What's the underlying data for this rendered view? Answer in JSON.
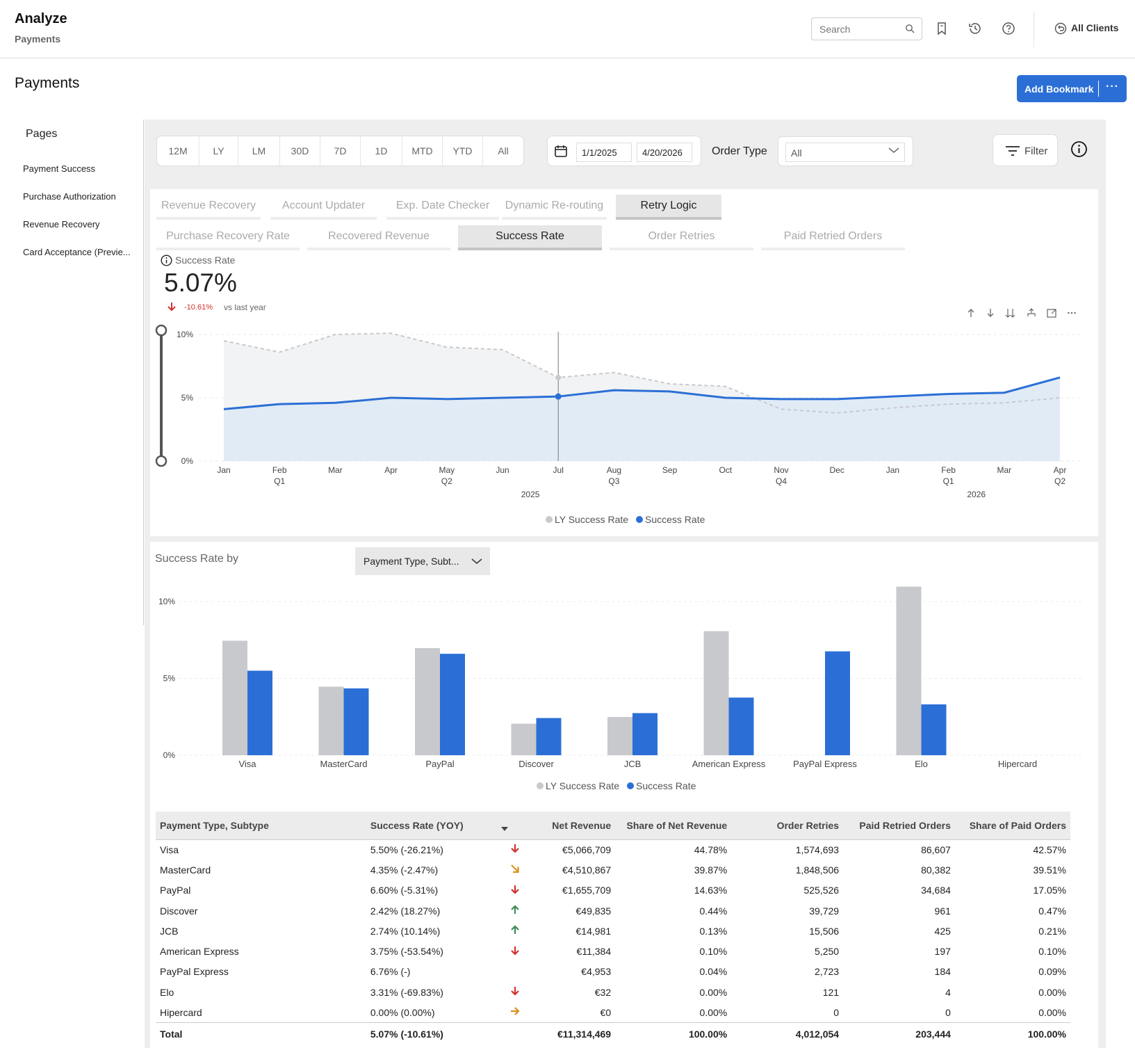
{
  "header": {
    "app_title": "Analyze",
    "app_subtitle": "Payments",
    "search_placeholder": "Search",
    "clients_label": "All Clients"
  },
  "page": {
    "title": "Payments",
    "bookmark_label": "Add Bookmark",
    "bookmark_more": "···"
  },
  "sidebar": {
    "heading": "Pages",
    "items": [
      "Payment Success",
      "Purchase Authorization",
      "Revenue Recovery",
      "Card Acceptance (Previe..."
    ]
  },
  "filters": {
    "periods": [
      "12M",
      "LY",
      "LM",
      "30D",
      "7D",
      "1D",
      "MTD",
      "YTD",
      "All"
    ],
    "date_from": "1/1/2025",
    "date_to": "4/20/2026",
    "order_type_label": "Order Type",
    "order_type_value": "All",
    "filter_label": "Filter"
  },
  "tabs_primary": {
    "items": [
      "Revenue Recovery",
      "Account Updater",
      "Exp. Date Checker",
      "Dynamic Re-routing",
      "Retry Logic"
    ],
    "active": "Retry Logic"
  },
  "tabs_secondary": {
    "items": [
      "Purchase Recovery Rate",
      "Recovered Revenue",
      "Success Rate",
      "Order Retries",
      "Paid Retried Orders"
    ],
    "active": "Success Rate"
  },
  "kpi": {
    "label": "Success Rate",
    "value": "5.07%",
    "delta": "-10.61%",
    "vs": "vs last year"
  },
  "colors": {
    "current": "#2b6fd6",
    "last_year": "#c8c9cc",
    "negative": "#d0312d",
    "positive": "#3d8b58",
    "neutral": "#d8901d",
    "accent": "#2b6fd6"
  },
  "chart_data": [
    {
      "type": "area",
      "x": [
        "Jan 2025",
        "Feb 2025",
        "Mar 2025",
        "Apr 2025",
        "May 2025",
        "Jun 2025",
        "Jul 2025",
        "Aug 2025",
        "Sep 2025",
        "Oct 2025",
        "Nov 2025",
        "Dec 2025",
        "Jan 2026",
        "Feb 2026",
        "Mar 2026",
        "Apr 2026"
      ],
      "x_tick_labels": [
        "Jan",
        "Feb",
        "Mar",
        "Apr",
        "May",
        "Jun",
        "Jul",
        "Aug",
        "Sep",
        "Oct",
        "Nov",
        "Dec",
        "Jan",
        "Feb",
        "Mar",
        "Apr"
      ],
      "quarter_labels": [
        "",
        "Q1",
        "",
        "",
        "Q2",
        "",
        "",
        "Q3",
        "",
        "",
        "Q4",
        "",
        "",
        "Q1",
        "",
        "Q2"
      ],
      "year_labels": [
        {
          "label": "2025",
          "at": 5.5
        },
        {
          "label": "2026",
          "at": 13.5
        }
      ],
      "series": [
        {
          "name": "LY Success Rate",
          "values": [
            9.5,
            8.6,
            10.0,
            10.1,
            9.0,
            8.8,
            6.6,
            7.0,
            6.1,
            5.9,
            4.1,
            3.8,
            4.2,
            4.5,
            4.6,
            5.0
          ],
          "style": "dashed"
        },
        {
          "name": "Success Rate",
          "values": [
            4.1,
            4.5,
            4.6,
            5.0,
            4.9,
            5.0,
            5.1,
            5.6,
            5.5,
            5.0,
            4.9,
            4.9,
            5.1,
            5.3,
            5.4,
            6.6
          ],
          "style": "solid"
        }
      ],
      "y_ticks": [
        "0%",
        "5%",
        "10%"
      ],
      "ylim": [
        0,
        10
      ],
      "highlight_x": "Jul 2025",
      "legend": [
        "LY Success Rate",
        "Success Rate"
      ]
    },
    {
      "type": "bar",
      "title": "Success Rate by",
      "categories": [
        "Visa",
        "MasterCard",
        "PayPal",
        "Discover",
        "JCB",
        "American Express",
        "PayPal Express",
        "Elo",
        "Hipercard"
      ],
      "series": [
        {
          "name": "LY Success Rate",
          "values": [
            7.45,
            4.46,
            6.97,
            2.05,
            2.49,
            8.07,
            0,
            10.97,
            0
          ]
        },
        {
          "name": "Success Rate",
          "values": [
            5.5,
            4.35,
            6.6,
            2.42,
            2.74,
            3.75,
            6.76,
            3.31,
            0
          ]
        }
      ],
      "y_ticks": [
        "0%",
        "5%",
        "10%"
      ],
      "ylim": [
        0,
        10
      ],
      "legend": [
        "LY Success Rate",
        "Success Rate"
      ]
    }
  ],
  "dimension_select": {
    "value": "Payment Type, Subt..."
  },
  "table": {
    "headers": [
      "Payment Type, Subtype",
      "Success Rate (YOY)",
      "",
      "Net Revenue",
      "Share of Net Revenue",
      "Order Retries",
      "Paid Retried Orders",
      "Share of Paid Orders"
    ],
    "rows": [
      {
        "name": "Visa",
        "rate": "5.50% (-26.21%)",
        "trend": "down",
        "net": "€5,066,709",
        "share_net": "44.78%",
        "retries": "1,574,693",
        "paid": "86,607",
        "share_paid": "42.57%"
      },
      {
        "name": "MasterCard",
        "rate": "4.35% (-2.47%)",
        "trend": "down-right",
        "net": "€4,510,867",
        "share_net": "39.87%",
        "retries": "1,848,506",
        "paid": "80,382",
        "share_paid": "39.51%"
      },
      {
        "name": "PayPal",
        "rate": "6.60% (-5.31%)",
        "trend": "down",
        "net": "€1,655,709",
        "share_net": "14.63%",
        "retries": "525,526",
        "paid": "34,684",
        "share_paid": "17.05%"
      },
      {
        "name": "Discover",
        "rate": "2.42% (18.27%)",
        "trend": "up",
        "net": "€49,835",
        "share_net": "0.44%",
        "retries": "39,729",
        "paid": "961",
        "share_paid": "0.47%"
      },
      {
        "name": "JCB",
        "rate": "2.74% (10.14%)",
        "trend": "up",
        "net": "€14,981",
        "share_net": "0.13%",
        "retries": "15,506",
        "paid": "425",
        "share_paid": "0.21%"
      },
      {
        "name": "American Express",
        "rate": "3.75% (-53.54%)",
        "trend": "down",
        "net": "€11,384",
        "share_net": "0.10%",
        "retries": "5,250",
        "paid": "197",
        "share_paid": "0.10%"
      },
      {
        "name": "PayPal Express",
        "rate": "6.76% (-)",
        "trend": "none",
        "net": "€4,953",
        "share_net": "0.04%",
        "retries": "2,723",
        "paid": "184",
        "share_paid": "0.09%"
      },
      {
        "name": "Elo",
        "rate": "3.31% (-69.83%)",
        "trend": "down",
        "net": "€32",
        "share_net": "0.00%",
        "retries": "121",
        "paid": "4",
        "share_paid": "0.00%"
      },
      {
        "name": "Hipercard",
        "rate": "0.00% (0.00%)",
        "trend": "right",
        "net": "€0",
        "share_net": "0.00%",
        "retries": "0",
        "paid": "0",
        "share_paid": "0.00%"
      }
    ],
    "total": {
      "name": "Total",
      "rate": "5.07% (-10.61%)",
      "net": "€11,314,469",
      "share_net": "100.00%",
      "retries": "4,012,054",
      "paid": "203,444",
      "share_paid": "100.00%"
    }
  }
}
